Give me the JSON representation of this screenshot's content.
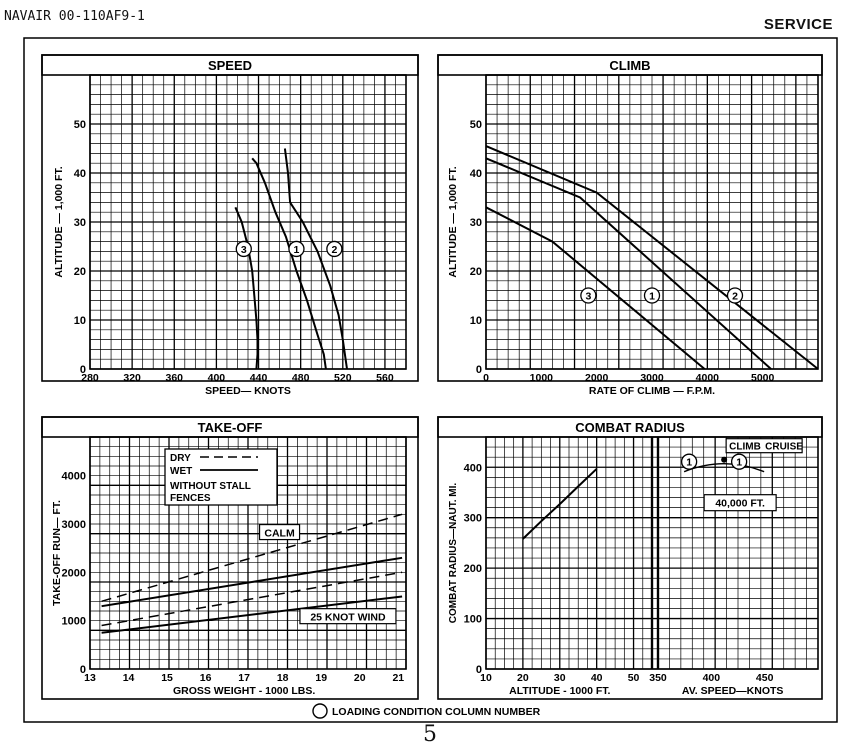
{
  "header": {
    "doc_number": "NAVAIR 00-110AF9-1",
    "section": "SERVICE"
  },
  "footer": {
    "legend_text": "LOADING CONDITION COLUMN NUMBER",
    "page_number": "5"
  },
  "chart_data": [
    {
      "id": "speed",
      "type": "line",
      "title": "SPEED",
      "xlabel": "SPEED— KNOTS",
      "ylabel": "ALTITUDE — 1,000 FT.",
      "xlim": [
        280,
        580
      ],
      "ylim": [
        0,
        60
      ],
      "xticks": [
        "280",
        "320",
        "360",
        "400",
        "440",
        "480",
        "520",
        "560"
      ],
      "yticks": [
        "0",
        "10",
        "20",
        "30",
        "40",
        "50"
      ],
      "series": [
        {
          "name": "1",
          "x": [
            434,
            438,
            446,
            456,
            466,
            476,
            486,
            496,
            502,
            504
          ],
          "y": [
            43,
            42,
            38,
            32,
            27,
            20,
            14,
            7,
            3,
            0
          ]
        },
        {
          "name": "2",
          "x": [
            465,
            468,
            470,
            482,
            496,
            508,
            516,
            520,
            522,
            524
          ],
          "y": [
            45,
            40,
            34,
            30,
            24,
            17,
            11,
            6,
            3,
            0
          ]
        },
        {
          "name": "3",
          "x": [
            418,
            424,
            430,
            434,
            436,
            438,
            439,
            439,
            438
          ],
          "y": [
            33,
            30,
            25,
            20,
            15,
            10,
            6,
            3,
            0
          ]
        }
      ]
    },
    {
      "id": "climb",
      "type": "line",
      "title": "CLIMB",
      "xlabel": "RATE OF CLIMB — F.P.M.",
      "ylabel": "ALTITUDE — 1,000 FT.",
      "xlim": [
        0,
        6000
      ],
      "ylim": [
        0,
        60
      ],
      "xticks": [
        "0",
        "1000",
        "2000",
        "3000",
        "4000",
        "5000"
      ],
      "yticks": [
        "0",
        "10",
        "20",
        "30",
        "40",
        "50"
      ],
      "series": [
        {
          "name": "1",
          "x": [
            0,
            1700,
            5150
          ],
          "y": [
            43,
            35,
            0
          ]
        },
        {
          "name": "2",
          "x": [
            0,
            2000,
            6000
          ],
          "y": [
            45.5,
            36,
            0
          ]
        },
        {
          "name": "3",
          "x": [
            0,
            1200,
            3950
          ],
          "y": [
            33,
            26,
            0
          ]
        }
      ]
    },
    {
      "id": "takeoff",
      "type": "line",
      "title": "TAKE-OFF",
      "xlabel": "GROSS WEIGHT - 1000 LBS.",
      "ylabel": "TAKE-OFF RUN— FT.",
      "xlim": [
        13,
        21.2
      ],
      "ylim": [
        0,
        4800
      ],
      "xticks": [
        "13",
        "14",
        "15",
        "16",
        "17",
        "18",
        "19",
        "20",
        "21"
      ],
      "yticks": [
        "0",
        "1000",
        "2000",
        "3000",
        "4000"
      ],
      "legend": [
        "DRY",
        "WET",
        "WITHOUT STALL FENCES"
      ],
      "annotations": [
        "CALM",
        "25 KNOT WIND"
      ],
      "series": [
        {
          "name": "Calm dry",
          "x": [
            13.3,
            21.1
          ],
          "y": [
            1400,
            3200
          ]
        },
        {
          "name": "Calm wet",
          "x": [
            13.3,
            21.1
          ],
          "y": [
            1300,
            2300
          ]
        },
        {
          "name": "25 knot wind dry",
          "x": [
            13.3,
            21.1
          ],
          "y": [
            900,
            2000
          ]
        },
        {
          "name": "25 knot wind wet",
          "x": [
            13.3,
            21.1
          ],
          "y": [
            750,
            1500
          ]
        }
      ]
    },
    {
      "id": "combat",
      "type": "line",
      "title": "COMBAT RADIUS",
      "xlabel": "ALTITUDE - 1000 FT.",
      "xlabel2": "AV. SPEED—KNOTS",
      "ylabel": "COMBAT RADIUS—NAUT. MI.",
      "ylim": [
        0,
        460
      ],
      "xlim": [
        10,
        55
      ],
      "xlim2": [
        350,
        500
      ],
      "xticks": [
        "10",
        "20",
        "30",
        "40",
        "50"
      ],
      "xticks2": [
        "350",
        "400",
        "450"
      ],
      "yticks": [
        "0",
        "100",
        "200",
        "300",
        "400"
      ],
      "annotations": [
        "CLIMB",
        "CRUISE",
        "40,000 FT."
      ],
      "series": [
        {
          "name": "1",
          "x": [
            20,
            25,
            30,
            35,
            40
          ],
          "y": [
            258,
            293,
            327,
            362,
            397
          ]
        },
        {
          "name": "Climb 1",
          "x2": [
            412
          ],
          "y": [
            415
          ]
        }
      ]
    }
  ]
}
